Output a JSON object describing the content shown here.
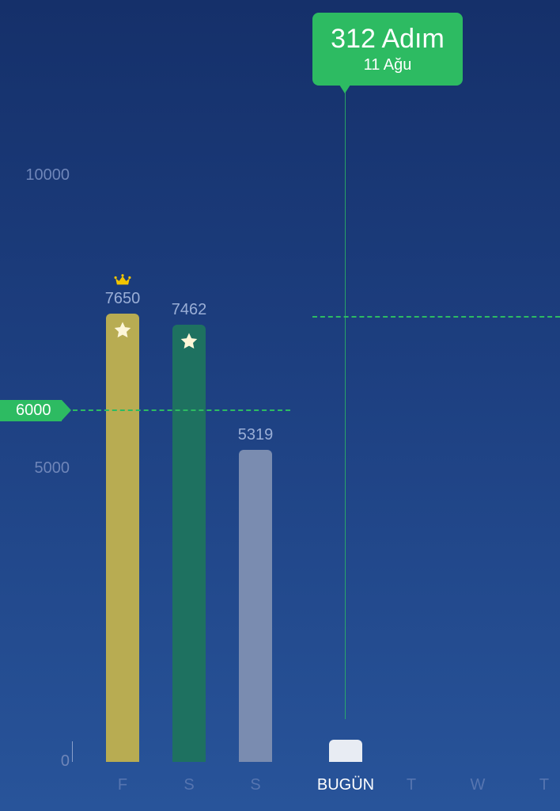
{
  "chart_data": {
    "type": "bar",
    "categories": [
      "F",
      "S",
      "S",
      "BUGÜN",
      "T",
      "W",
      "T"
    ],
    "values": [
      7650,
      7462,
      5319,
      312,
      null,
      null,
      null
    ],
    "value_labels": [
      "7650",
      "7462",
      "5319",
      "",
      "",
      "",
      ""
    ],
    "bar_colors": [
      "#b8ac52",
      "#1e7160",
      "#7a8cb0",
      "#e8ecf3"
    ],
    "goal_reached_star": [
      true,
      true,
      false,
      false
    ],
    "best_day_crown": [
      true,
      false,
      false,
      false
    ],
    "y_ticks": [
      "0",
      "5000",
      "10000"
    ],
    "ylim": [
      0,
      10000
    ],
    "goal": {
      "value": 6000,
      "label": "6000",
      "color": "#2dbb62"
    },
    "reference_line": {
      "value": 7570,
      "color": "#2dbb62"
    },
    "today_index": 3,
    "grid": false
  },
  "tooltip": {
    "steps": "312 Adım",
    "date": "11 Ağu",
    "color": "#2dbb62"
  }
}
